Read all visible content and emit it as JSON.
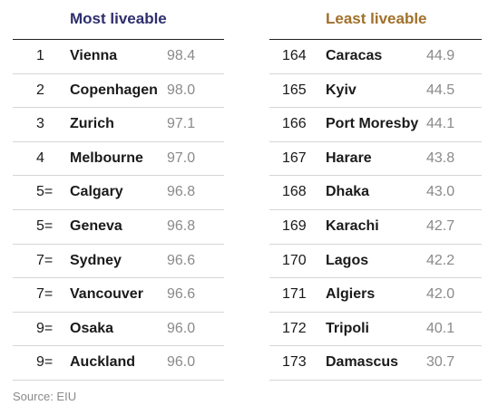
{
  "chart_data": {
    "type": "table",
    "source": "Source: EIU",
    "colors": {
      "most_heading": "#2e2e6e",
      "least_heading": "#a0702a",
      "score": "#8a8a8a"
    },
    "tables": [
      {
        "title": "Most liveable",
        "rows": [
          {
            "rank": "1",
            "city": "Vienna",
            "score": 98.4
          },
          {
            "rank": "2",
            "city": "Copenhagen",
            "score": 98.0
          },
          {
            "rank": "3",
            "city": "Zurich",
            "score": 97.1
          },
          {
            "rank": "4",
            "city": "Melbourne",
            "score": 97.0
          },
          {
            "rank": "5=",
            "city": "Calgary",
            "score": 96.8
          },
          {
            "rank": "5=",
            "city": "Geneva",
            "score": 96.8
          },
          {
            "rank": "7=",
            "city": "Sydney",
            "score": 96.6
          },
          {
            "rank": "7=",
            "city": "Vancouver",
            "score": 96.6
          },
          {
            "rank": "9=",
            "city": "Osaka",
            "score": 96.0
          },
          {
            "rank": "9=",
            "city": "Auckland",
            "score": 96.0
          }
        ]
      },
      {
        "title": "Least liveable",
        "rows": [
          {
            "rank": "164",
            "city": "Caracas",
            "score": 44.9
          },
          {
            "rank": "165",
            "city": "Kyiv",
            "score": 44.5
          },
          {
            "rank": "166",
            "city": "Port Moresby",
            "score": 44.1
          },
          {
            "rank": "167",
            "city": "Harare",
            "score": 43.8
          },
          {
            "rank": "168",
            "city": "Dhaka",
            "score": 43.0
          },
          {
            "rank": "169",
            "city": "Karachi",
            "score": 42.7
          },
          {
            "rank": "170",
            "city": "Lagos",
            "score": 42.2
          },
          {
            "rank": "171",
            "city": "Algiers",
            "score": 42.0
          },
          {
            "rank": "172",
            "city": "Tripoli",
            "score": 40.1
          },
          {
            "rank": "173",
            "city": "Damascus",
            "score": 30.7
          }
        ]
      }
    ]
  }
}
